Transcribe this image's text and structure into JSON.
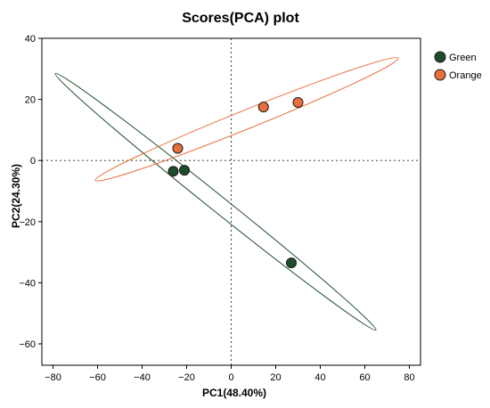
{
  "chart_data": {
    "type": "scatter",
    "title": "Scores(PCA) plot",
    "xlabel": "PC1(48.40%)",
    "ylabel": "PC2(24.30%)",
    "xlim": [
      -85,
      85
    ],
    "ylim": [
      -67,
      40
    ],
    "xticks": [
      -80,
      -60,
      -40,
      -20,
      0,
      20,
      40,
      60,
      80
    ],
    "yticks": [
      -60,
      -40,
      -20,
      0,
      20,
      40
    ],
    "grid": false,
    "reference_lines": {
      "x": 0,
      "y": 0,
      "style": "dotted"
    },
    "legend_position": "top-right",
    "series": [
      {
        "name": "Green",
        "color": "#1e4d2b",
        "points": [
          {
            "x": -26,
            "y": -3.5
          },
          {
            "x": -21,
            "y": -3.2
          },
          {
            "x": 27,
            "y": -33.5
          }
        ],
        "ellipse": {
          "center": [
            -7,
            -13.5
          ],
          "end_a": [
            -79,
            28.5
          ],
          "end_b": [
            65,
            -55.5
          ],
          "minor_semi_axis": 3.6
        }
      },
      {
        "name": "Orange",
        "color": "#e8703a",
        "points": [
          {
            "x": -24,
            "y": 4
          },
          {
            "x": 14.5,
            "y": 17.5
          },
          {
            "x": 30,
            "y": 19
          }
        ],
        "ellipse": {
          "center": [
            7,
            13.5
          ],
          "end_a": [
            -61,
            -6.5
          ],
          "end_b": [
            75,
            33.5
          ],
          "minor_semi_axis": 4.2
        }
      }
    ]
  }
}
